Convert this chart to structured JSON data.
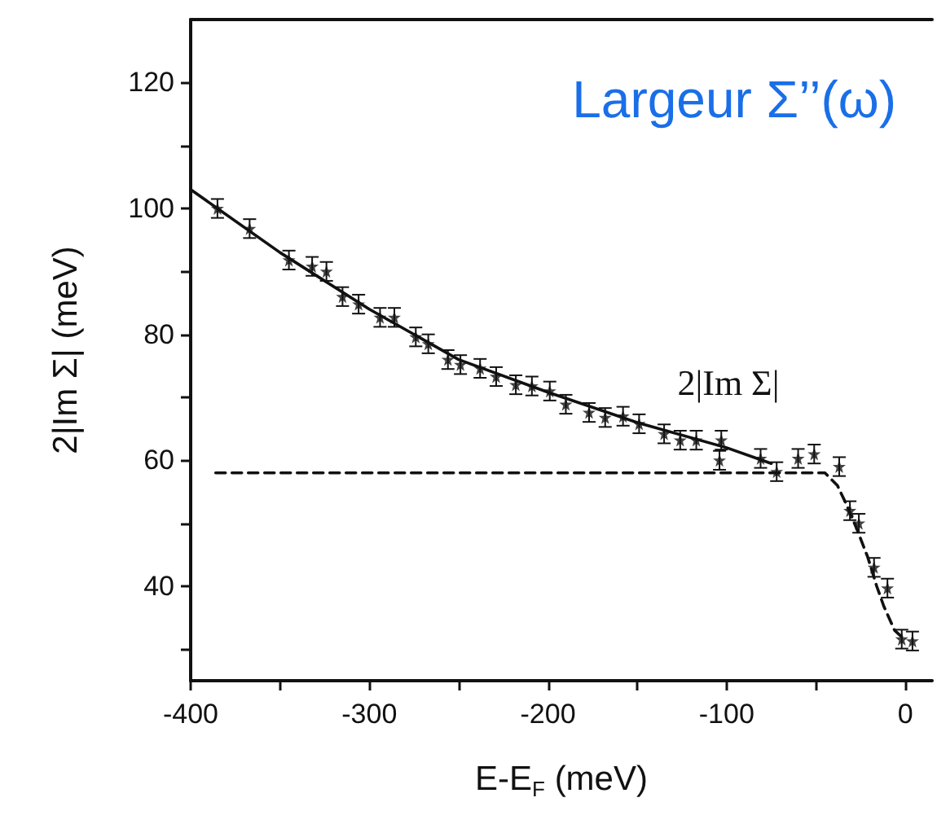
{
  "chart_data": {
    "type": "scatter",
    "title": "Largeur Σ’’(ω)",
    "xlabel": "E-E$_{F}$ (meV)",
    "ylabel": "2|Im Σ| (meV)",
    "annotations": [
      "2|Im Σ|"
    ],
    "xlim": [
      -400,
      15
    ],
    "xticks": [
      -400,
      {
        "value": -350,
        "label": null
      },
      -300,
      {
        "value": -250,
        "label": null
      },
      -200,
      {
        "value": -150,
        "label": null
      },
      -100,
      {
        "value": -50,
        "label": null
      },
      0
    ],
    "ylim": [
      25,
      130
    ],
    "yticks": [
      {
        "value": 30,
        "label": null
      },
      40,
      {
        "value": 50,
        "label": null
      },
      60,
      {
        "value": 70,
        "label": null
      },
      80,
      {
        "value": 90,
        "label": null
      },
      100,
      {
        "value": 110,
        "label": null
      },
      120
    ],
    "grid": false,
    "series": [
      {
        "color": "#111111",
        "marker": "star",
        "x": [
          -385,
          -367,
          -345,
          -332,
          -324,
          -315,
          -306,
          -294,
          -286,
          -274,
          -267,
          -256,
          -249,
          -238,
          -229,
          -218,
          -209,
          -199,
          -190,
          -177,
          -168,
          -158,
          -149,
          -135,
          -126,
          -117,
          -103,
          -104,
          -81,
          -72,
          -60,
          -51,
          -37,
          -31,
          -26,
          -17.5,
          -10,
          -2,
          4
        ],
        "values": [
          100,
          96.8,
          91.8,
          90.8,
          90,
          86,
          84.8,
          82.7,
          82.7,
          79.6,
          78.5,
          76,
          75.2,
          74.6,
          73.3,
          72,
          71.8,
          71,
          68.9,
          67.6,
          66.8,
          67,
          65.8,
          64.2,
          63.2,
          63.2,
          63.2,
          60,
          60.3,
          58.2,
          60.3,
          61,
          59,
          52,
          50,
          43,
          39.7,
          31.6,
          31.3
        ],
        "errors": [
          1.5,
          1.5,
          1.5,
          1.5,
          1.5,
          1.5,
          1.5,
          1.5,
          1.5,
          1.5,
          1.5,
          1.5,
          1.5,
          1.5,
          1.5,
          1.5,
          1.5,
          1.5,
          1.5,
          1.5,
          1.5,
          1.5,
          1.5,
          1.5,
          1.5,
          1.5,
          1.5,
          1.5,
          1.5,
          1.5,
          1.5,
          1.5,
          1.5,
          1.5,
          1.5,
          1.5,
          1.5,
          1.5,
          1.5
        ]
      },
      {
        "type": "line",
        "color": "#111111",
        "line_style": "solid",
        "marker": "none",
        "x": [
          -400,
          -350,
          -300,
          -250,
          -200,
          -150,
          -100,
          -75
        ],
        "values": [
          103,
          93,
          84,
          76,
          70.8,
          66,
          62,
          59.5
        ]
      },
      {
        "type": "line",
        "color": "#111111",
        "line_style": "dashed",
        "marker": "none",
        "x": [
          -386,
          -45,
          -38,
          -33,
          -27,
          -21,
          -16,
          -12,
          -6,
          -1
        ],
        "values": [
          58,
          58,
          56,
          53,
          49,
          44.6,
          40,
          36.8,
          33,
          31.7
        ]
      }
    ]
  }
}
